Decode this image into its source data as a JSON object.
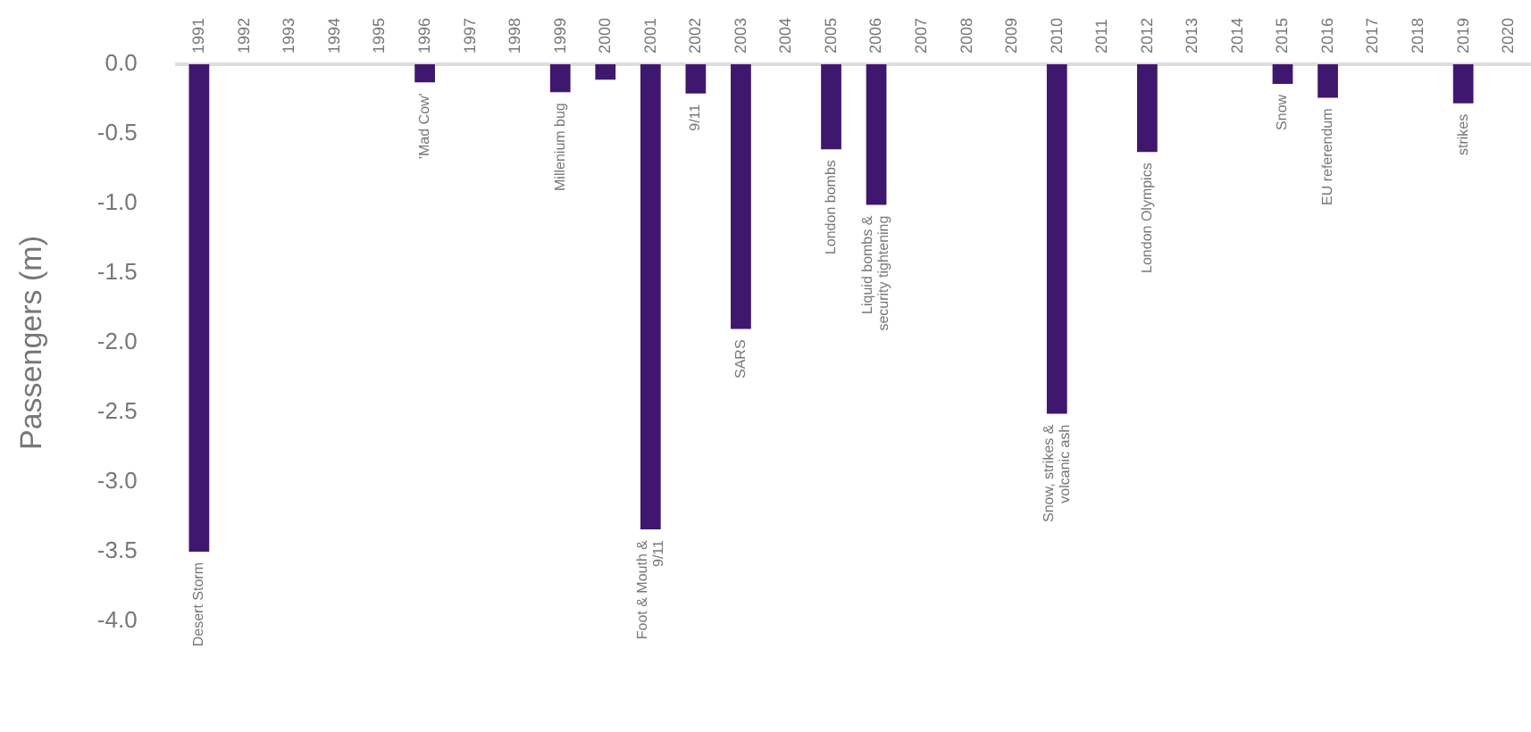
{
  "chart_data": {
    "type": "bar",
    "ylabel": "Passengers (m)",
    "categories": [
      "1991",
      "1992",
      "1993",
      "1994",
      "1995",
      "1996",
      "1997",
      "1998",
      "1999",
      "2000",
      "2001",
      "2002",
      "2003",
      "2004",
      "2005",
      "2006",
      "2007",
      "2008",
      "2009",
      "2010",
      "2011",
      "2012",
      "2013",
      "2014",
      "2015",
      "2016",
      "2017",
      "2018",
      "2019",
      "2020"
    ],
    "values": [
      -3.5,
      null,
      null,
      null,
      null,
      -0.13,
      null,
      null,
      -0.2,
      -0.11,
      -3.34,
      -0.21,
      -1.9,
      null,
      -0.61,
      -1.01,
      null,
      null,
      null,
      -2.51,
      null,
      -0.63,
      null,
      null,
      -0.14,
      -0.24,
      null,
      null,
      -0.28,
      null
    ],
    "value_labels": [
      "Desert Storm",
      null,
      null,
      null,
      null,
      "'Mad Cow'",
      null,
      null,
      "Millenium bug",
      null,
      "Foot & Mouth &\n9/11",
      "9/11",
      "SARS",
      null,
      "London bombs",
      "Liquid bombs &\nsecurity tightening",
      null,
      null,
      null,
      "Snow, strikes &\nvolcanic ash",
      null,
      "London Olympics",
      null,
      null,
      "Snow",
      "EU referendum",
      null,
      null,
      "strikes",
      null
    ],
    "color": "#40176e",
    "ylim": [
      -4,
      0
    ],
    "yticks": [
      {
        "value": 0,
        "label": "0.0"
      },
      {
        "value": -0.5,
        "label": "-0.5"
      },
      {
        "value": -1,
        "label": "-1.0"
      },
      {
        "value": -1.5,
        "label": "-1.5"
      },
      {
        "value": -2,
        "label": "-2.0"
      },
      {
        "value": -2.5,
        "label": "-2.5"
      },
      {
        "value": -3,
        "label": "-3.0"
      },
      {
        "value": -3.5,
        "label": "-3.5"
      },
      {
        "value": -4,
        "label": "-4.0"
      }
    ],
    "grid": false,
    "legend": false
  }
}
